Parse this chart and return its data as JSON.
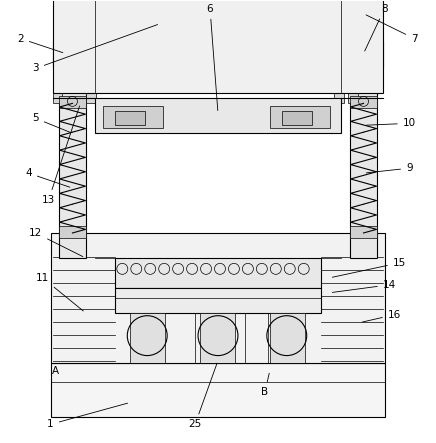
{
  "fig_width": 4.36,
  "fig_height": 4.43,
  "dpi": 100,
  "bg": "#ffffff",
  "lc": "#000000",
  "lw": 0.8,
  "tlw": 0.5
}
